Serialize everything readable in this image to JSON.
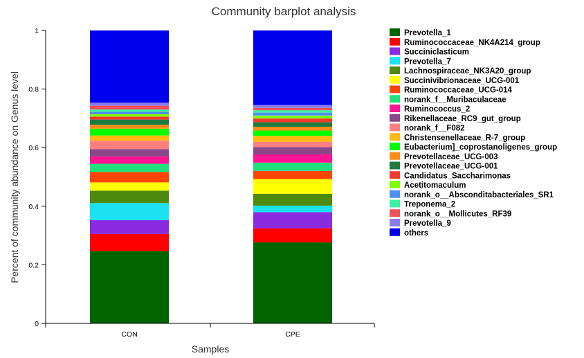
{
  "chart_data": {
    "type": "bar",
    "stacked": true,
    "title": "Community barplot analysis",
    "xlabel": "Samples",
    "ylabel": "Percent of community abundance on Genus level",
    "ylim": [
      0,
      1
    ],
    "yticks": [
      "0",
      "0.2",
      "0.4",
      "0.6",
      "0.8",
      "1"
    ],
    "categories": [
      "CON",
      "CPE"
    ],
    "legend_position": "right",
    "series": [
      {
        "name": "Prevotella_1",
        "color": "#006400",
        "values": [
          0.245,
          0.275
        ]
      },
      {
        "name": "Ruminococcaceae_NK4A214_group",
        "color": "#FF0000",
        "values": [
          0.058,
          0.048
        ]
      },
      {
        "name": "Succiniclasticum",
        "color": "#8A2BE2",
        "values": [
          0.047,
          0.055
        ]
      },
      {
        "name": "Prevotella_7",
        "color": "#1BE1F0",
        "values": [
          0.058,
          0.022
        ]
      },
      {
        "name": "Lachnospiraceae_NK3A20_group",
        "color": "#4E8A0E",
        "values": [
          0.042,
          0.04
        ]
      },
      {
        "name": "Succinivibrionaceae_UCG-001",
        "color": "#FFFF00",
        "values": [
          0.028,
          0.05
        ]
      },
      {
        "name": "Ruminococcaceae_UCG-014",
        "color": "#FF4500",
        "values": [
          0.035,
          0.028
        ]
      },
      {
        "name": "norank_f__Muribaculaceae",
        "color": "#1FE07A",
        "values": [
          0.028,
          0.028
        ]
      },
      {
        "name": "Ruminococcus_2",
        "color": "#FF1493",
        "values": [
          0.025,
          0.028
        ]
      },
      {
        "name": "Rikenellaceae_RC9_gut_group",
        "color": "#8B4789",
        "values": [
          0.025,
          0.025
        ]
      },
      {
        "name": "norank_f__F082",
        "color": "#FF7F7F",
        "values": [
          0.028,
          0.018
        ]
      },
      {
        "name": "Christensenellaceae_R-7_group",
        "color": "#FFB90F",
        "values": [
          0.018,
          0.02
        ]
      },
      {
        "name": "Eubacterium]_coprostanoligenes_group",
        "color": "#00FF00",
        "values": [
          0.023,
          0.018
        ]
      },
      {
        "name": "Prevotellaceae_UCG-003",
        "color": "#FF8C1A",
        "values": [
          0.013,
          0.013
        ]
      },
      {
        "name": "Prevotellaceae_UCG-001",
        "color": "#1E7B3E",
        "values": [
          0.018,
          0.015
        ]
      },
      {
        "name": "Candidatus_Saccharimonas",
        "color": "#F03A2E",
        "values": [
          0.01,
          0.013
        ]
      },
      {
        "name": "Acetitomaculum",
        "color": "#7FFF00",
        "values": [
          0.008,
          0.01
        ]
      },
      {
        "name": "norank_o__Absconditabacteriales_SR1",
        "color": "#4F8FF0",
        "values": [
          0.008,
          0.01
        ]
      },
      {
        "name": "Treponema_2",
        "color": "#3CF0A0",
        "values": [
          0.008,
          0.008
        ]
      },
      {
        "name": "norank_o__Mollicutes_RF39",
        "color": "#F0505A",
        "values": [
          0.013,
          0.008
        ]
      },
      {
        "name": "Prevotella_9",
        "color": "#8A7BF0",
        "values": [
          0.01,
          0.01
        ]
      },
      {
        "name": "others",
        "color": "#0000EE",
        "values": [
          0.245,
          0.253
        ]
      }
    ]
  }
}
